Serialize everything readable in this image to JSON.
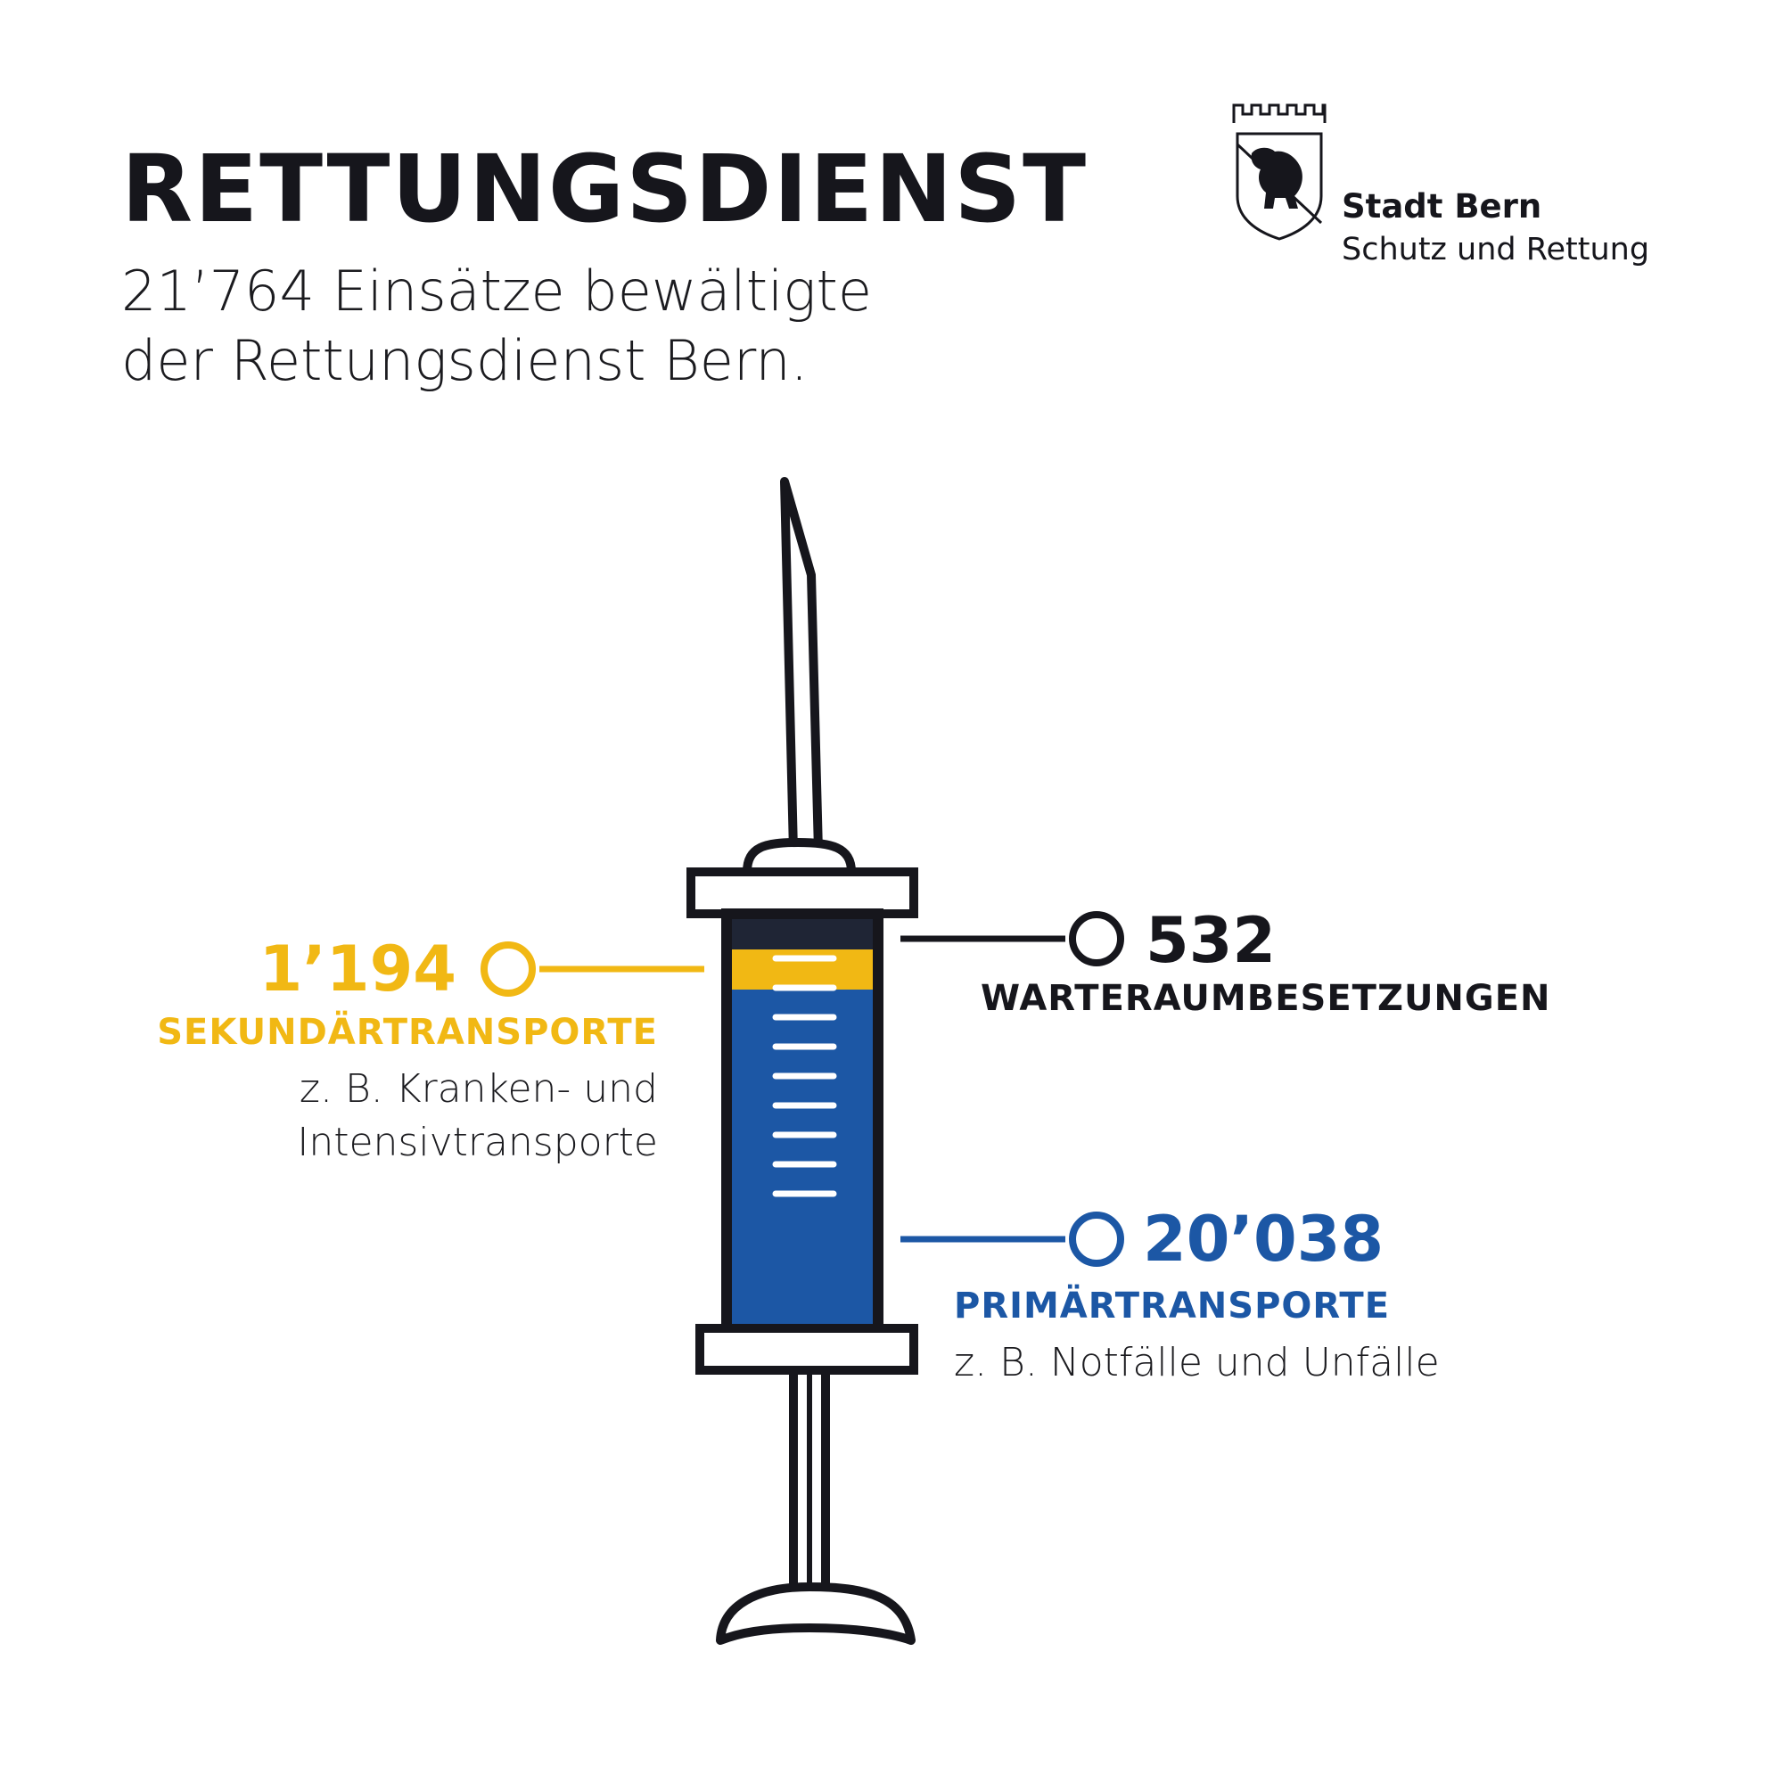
{
  "header": {
    "title": "RETTUNGSDIENST",
    "subtitle_line1": "21’764 Einsätze bewältigte",
    "subtitle_line2": "der Rettungsdienst Bern."
  },
  "logo": {
    "org": "Stadt Bern",
    "dept": "Schutz und Rettung",
    "icon": "bern-bear-coat-of-arms-icon"
  },
  "stats": {
    "secondary": {
      "value": "1’194",
      "label": "SEKUNDÄRTRANSPORTE",
      "desc_line1": "z. B. Kranken- und",
      "desc_line2": "Intensivtransporte"
    },
    "waiting": {
      "value": "532",
      "label": "WARTERAUMBESETZUNGEN"
    },
    "primary": {
      "value": "20’038",
      "label": "PRIMÄRTRANSPORTE",
      "desc_line1": "z. B. Notfälle und Unfälle"
    }
  },
  "colors": {
    "yellow": "#f1b814",
    "blue": "#1c57a5",
    "dark": "#16161c",
    "navy": "#1f2535"
  },
  "illustration": {
    "icon": "syringe-icon"
  }
}
